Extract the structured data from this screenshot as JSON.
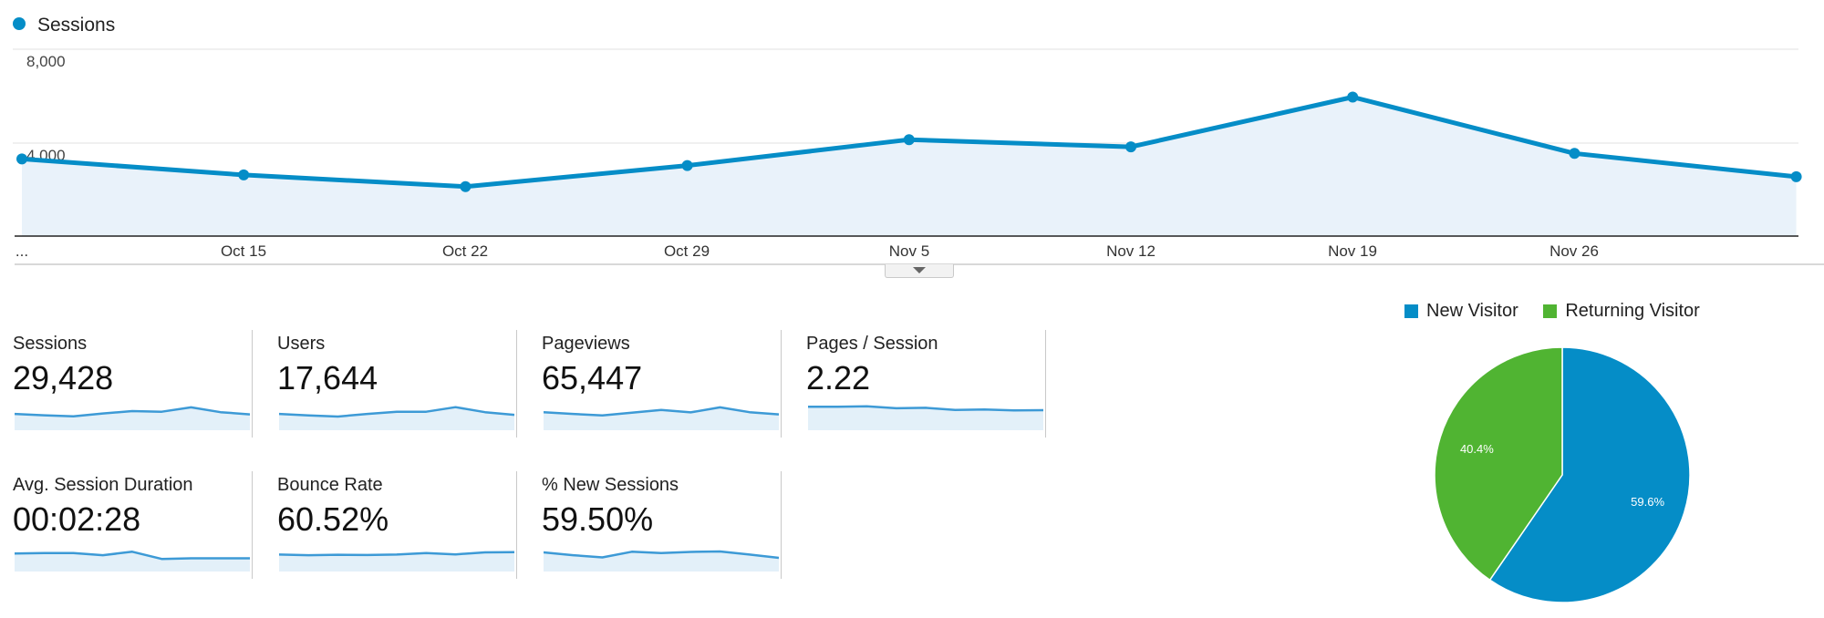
{
  "sessions_chart": {
    "legend_label": "Sessions",
    "y_ticks": [
      "8,000",
      "4,000"
    ],
    "first_x_label": "...",
    "x_labels": [
      "Oct 15",
      "Oct 22",
      "Oct 29",
      "Nov 5",
      "Nov 12",
      "Nov 19",
      "Nov 26"
    ]
  },
  "metrics": [
    {
      "label": "Sessions",
      "value": "29,428",
      "trend": [
        0.62,
        0.56,
        0.51,
        0.64,
        0.75,
        0.72,
        0.92,
        0.7,
        0.6
      ]
    },
    {
      "label": "Users",
      "value": "17,644",
      "trend": [
        0.62,
        0.55,
        0.5,
        0.62,
        0.72,
        0.72,
        0.93,
        0.7,
        0.58
      ]
    },
    {
      "label": "Pageviews",
      "value": "65,447",
      "trend": [
        0.7,
        0.62,
        0.55,
        0.68,
        0.8,
        0.69,
        0.92,
        0.7,
        0.6
      ]
    },
    {
      "label": "Pages / Session",
      "value": "2.22",
      "trend": [
        0.95,
        0.95,
        0.97,
        0.88,
        0.9,
        0.8,
        0.82,
        0.78,
        0.79
      ]
    },
    {
      "label": "Avg. Session Duration",
      "value": "00:02:28",
      "trend": [
        0.7,
        0.72,
        0.72,
        0.62,
        0.78,
        0.45,
        0.48,
        0.48,
        0.48
      ]
    },
    {
      "label": "Bounce Rate",
      "value": "60.52%",
      "trend": [
        0.65,
        0.62,
        0.64,
        0.63,
        0.65,
        0.72,
        0.66,
        0.75,
        0.76
      ]
    },
    {
      "label": "% New Sessions",
      "value": "59.50%",
      "trend": [
        0.75,
        0.62,
        0.52,
        0.78,
        0.72,
        0.77,
        0.79,
        0.65,
        0.5
      ]
    }
  ],
  "visitor_pie": {
    "legend": [
      "New Visitor",
      "Returning Visitor"
    ],
    "slices": [
      {
        "label": "59.6%",
        "value": 59.6,
        "color": "#058dc7"
      },
      {
        "label": "40.4%",
        "value": 40.4,
        "color": "#50b432"
      }
    ]
  },
  "colors": {
    "accent": "#058dc7",
    "area": "#e9f2fa",
    "returning": "#50b432"
  },
  "chart_data": [
    {
      "type": "line",
      "title": "",
      "xlabel": "",
      "ylabel": "",
      "x": [
        "",
        "Oct 15",
        "Oct 22",
        "Oct 29",
        "Nov 5",
        "Nov 12",
        "Nov 19",
        "Nov 26",
        ""
      ],
      "series": [
        {
          "name": "Sessions",
          "values": [
            3300,
            2620,
            2120,
            3020,
            4130,
            3820,
            5950,
            3540,
            2540
          ]
        }
      ],
      "ylim": [
        0,
        8000
      ],
      "grid": true,
      "legend": "top-left"
    },
    {
      "type": "pie",
      "categories": [
        "New Visitor",
        "Returning Visitor"
      ],
      "values": [
        59.6,
        40.4
      ],
      "legend": "top"
    }
  ]
}
